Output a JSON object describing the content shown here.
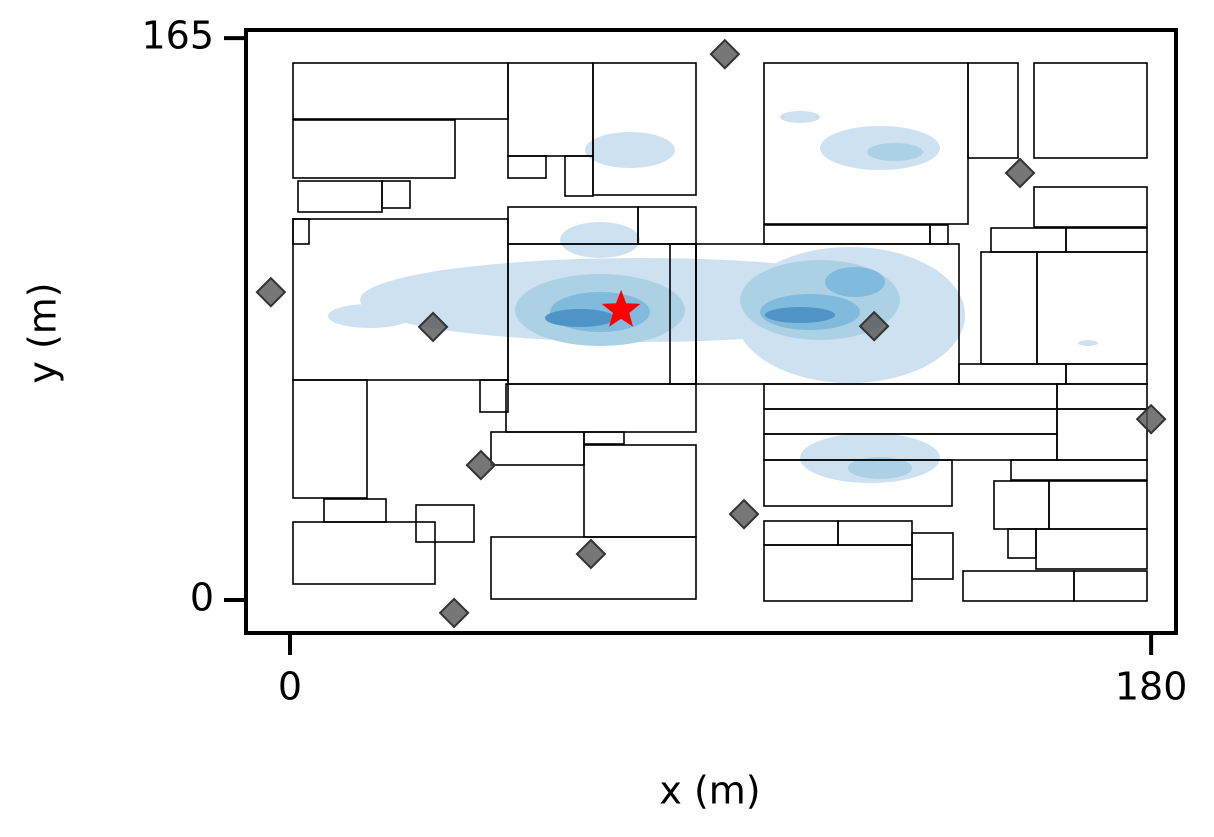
{
  "chart_data": {
    "type": "scatter",
    "xlabel": "x (m)",
    "ylabel": "y (m)",
    "xlim": [
      -9.2,
      185.2
    ],
    "ylim": [
      -9.7,
      167.4
    ],
    "xticks": [
      0,
      180
    ],
    "yticks": [
      0,
      165
    ],
    "series": [
      {
        "marker": "diamond",
        "color": "#555555",
        "x": [
          90.9,
          152.6,
          -4.0,
          29.9,
          122.1,
          180.0,
          39.9,
          94.9,
          62.9,
          34.3
        ],
        "y": [
          160.3,
          125.4,
          90.4,
          80.2,
          80.4,
          53.1,
          39.6,
          25.2,
          13.5,
          -3.8
        ]
      },
      {
        "marker": "star",
        "color": "#ff0000",
        "x": [
          69.2
        ],
        "y": [
          85.1
        ]
      }
    ]
  }
}
